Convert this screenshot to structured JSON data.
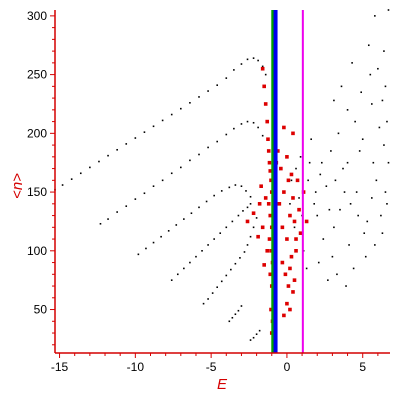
{
  "chart_data": {
    "type": "scatter",
    "title": "",
    "xlabel": "E",
    "ylabel": "<n>",
    "xlim": [
      -15.3,
      6.8
    ],
    "ylim": [
      13,
      305
    ],
    "x_ticks": [
      -15,
      -10,
      -5,
      0,
      5
    ],
    "y_ticks": [
      50,
      100,
      150,
      200,
      250,
      300
    ],
    "x_tick_labels": [
      "-15",
      "-10",
      "-5",
      "0",
      "5"
    ],
    "y_tick_labels": [
      "50",
      "100",
      "150",
      "200",
      "250",
      "300"
    ],
    "grid": false,
    "legend": "none",
    "colors": {
      "axis": "#d40000",
      "label": "#d40000",
      "ticklabel": "#000000",
      "series_black": "#000000",
      "series_red": "#dd0000",
      "line_green": "#00a000",
      "line_blue": "#0000ee",
      "line_magenta": "#ee00ee"
    },
    "vertical_lines": [
      {
        "x": -0.9,
        "color": "#00a000"
      },
      {
        "x": -0.75,
        "color": "#0000ee"
      },
      {
        "x": 1.05,
        "color": "#ee00ee"
      }
    ],
    "series": [
      {
        "color": "#000000",
        "kind": "dots",
        "points": [
          [
            -15.3,
            152
          ],
          [
            -14.8,
            156
          ],
          [
            -14.2,
            161
          ],
          [
            -13.6,
            166
          ],
          [
            -13,
            171
          ],
          [
            -12.4,
            176
          ],
          [
            -11.8,
            181
          ],
          [
            -11.2,
            186
          ],
          [
            -10.6,
            191
          ],
          [
            -10,
            196
          ],
          [
            -9.4,
            201
          ],
          [
            -8.8,
            206
          ],
          [
            -8.2,
            211
          ],
          [
            -7.6,
            216
          ],
          [
            -7,
            221
          ],
          [
            -6.4,
            226
          ],
          [
            -5.8,
            231
          ],
          [
            -5.2,
            236
          ],
          [
            -4.6,
            241
          ],
          [
            -4,
            247
          ],
          [
            -3.5,
            254
          ],
          [
            -3,
            259
          ],
          [
            -2.6,
            263
          ],
          [
            -2.2,
            264
          ],
          [
            -1.9,
            262
          ],
          [
            -1.6,
            257
          ],
          [
            -1.4,
            250
          ],
          [
            -12.3,
            123
          ],
          [
            -11.8,
            127
          ],
          [
            -11.2,
            133
          ],
          [
            -10.6,
            138
          ],
          [
            -10,
            144
          ],
          [
            -9.4,
            149
          ],
          [
            -8.8,
            155
          ],
          [
            -8.2,
            160
          ],
          [
            -7.6,
            166
          ],
          [
            -7,
            171
          ],
          [
            -6.4,
            177
          ],
          [
            -5.8,
            182
          ],
          [
            -5.2,
            188
          ],
          [
            -4.6,
            193
          ],
          [
            -4,
            199
          ],
          [
            -3.5,
            204
          ],
          [
            -3,
            208
          ],
          [
            -2.6,
            210
          ],
          [
            -2.2,
            209
          ],
          [
            -1.9,
            205
          ],
          [
            -1.6,
            198
          ],
          [
            -9.8,
            97
          ],
          [
            -9.3,
            102
          ],
          [
            -8.8,
            107
          ],
          [
            -8.3,
            112
          ],
          [
            -7.8,
            117
          ],
          [
            -7.3,
            122
          ],
          [
            -6.8,
            127
          ],
          [
            -6.3,
            132
          ],
          [
            -5.8,
            137
          ],
          [
            -5.3,
            142
          ],
          [
            -4.8,
            147
          ],
          [
            -4.3,
            151
          ],
          [
            -3.8,
            154
          ],
          [
            -3.4,
            156
          ],
          [
            -3,
            155
          ],
          [
            -2.7,
            151
          ],
          [
            -2.4,
            146
          ],
          [
            -7.6,
            75
          ],
          [
            -7.2,
            80
          ],
          [
            -6.8,
            85
          ],
          [
            -6.4,
            90
          ],
          [
            -6,
            95
          ],
          [
            -5.6,
            100
          ],
          [
            -5.2,
            105
          ],
          [
            -4.8,
            110
          ],
          [
            -4.4,
            115
          ],
          [
            -4,
            120
          ],
          [
            -3.6,
            125
          ],
          [
            -3.2,
            130
          ],
          [
            -2.9,
            134
          ],
          [
            -2.6,
            137
          ],
          [
            -2.4,
            140
          ],
          [
            -5.5,
            55
          ],
          [
            -5.2,
            59
          ],
          [
            -4.9,
            64
          ],
          [
            -4.6,
            69
          ],
          [
            -4.3,
            74
          ],
          [
            -4,
            79
          ],
          [
            -3.7,
            84
          ],
          [
            -3.4,
            89
          ],
          [
            -3.1,
            94
          ],
          [
            -2.8,
            99
          ],
          [
            -2.6,
            105
          ],
          [
            -2.4,
            112
          ],
          [
            -2.2,
            120
          ],
          [
            -2,
            128
          ],
          [
            -3.8,
            40
          ],
          [
            -3.6,
            43
          ],
          [
            -3.4,
            46
          ],
          [
            -3.2,
            49
          ],
          [
            -3,
            53
          ],
          [
            -2.4,
            24
          ],
          [
            -2.2,
            26
          ],
          [
            -2.0,
            29
          ],
          [
            -1.8,
            32
          ],
          [
            0.3,
            160
          ],
          [
            0.8,
            145
          ],
          [
            1.5,
            175
          ],
          [
            2.0,
            130
          ],
          [
            2.6,
            155
          ],
          [
            3.1,
            120
          ],
          [
            3.7,
            170
          ],
          [
            4.2,
            140
          ],
          [
            4.8,
            185
          ],
          [
            5.3,
            125
          ],
          [
            5.9,
            160
          ],
          [
            6.4,
            190
          ],
          [
            0.5,
            120
          ],
          [
            1.1,
            100
          ],
          [
            1.8,
            140
          ],
          [
            2.4,
            110
          ],
          [
            3.0,
            95
          ],
          [
            3.5,
            135
          ],
          [
            4.1,
            105
          ],
          [
            4.6,
            150
          ],
          [
            5.1,
            115
          ],
          [
            5.7,
            175
          ],
          [
            6.2,
            130
          ],
          [
            6.6,
            210
          ],
          [
            0.9,
            180
          ],
          [
            1.6,
            195
          ],
          [
            2.2,
            165
          ],
          [
            2.9,
            185
          ],
          [
            3.4,
            200
          ],
          [
            4.0,
            175
          ],
          [
            4.5,
            210
          ],
          [
            5.0,
            195
          ],
          [
            5.6,
            225
          ],
          [
            6.1,
            205
          ],
          [
            6.5,
            240
          ],
          [
            6.7,
            175
          ],
          [
            1.3,
            85
          ],
          [
            2.1,
            90
          ],
          [
            2.7,
            75
          ],
          [
            3.3,
            80
          ],
          [
            3.9,
            70
          ],
          [
            4.4,
            85
          ],
          [
            5.2,
            95
          ],
          [
            5.8,
            105
          ],
          [
            6.3,
            115
          ],
          [
            6.6,
            140
          ],
          [
            3.6,
            240
          ],
          [
            4.3,
            260
          ],
          [
            4.9,
            235
          ],
          [
            5.4,
            275
          ],
          [
            6.0,
            255
          ],
          [
            6.4,
            270
          ],
          [
            5.8,
            300
          ],
          [
            6.7,
            305
          ],
          [
            4.0,
            220
          ],
          [
            5.5,
            250
          ],
          [
            3.1,
            228
          ],
          [
            6.3,
            228
          ],
          [
            0.2,
            140
          ],
          [
            0.6,
            170
          ],
          [
            1.0,
            130
          ],
          [
            1.4,
            160
          ],
          [
            1.9,
            150
          ],
          [
            2.3,
            175
          ],
          [
            2.8,
            135
          ],
          [
            3.2,
            160
          ],
          [
            3.8,
            150
          ],
          [
            4.7,
            130
          ],
          [
            5.6,
            145
          ],
          [
            6.5,
            150
          ]
        ]
      },
      {
        "color": "#dd0000",
        "kind": "points",
        "points": [
          [
            -1.6,
            255
          ],
          [
            -1.5,
            240
          ],
          [
            -1.4,
            225
          ],
          [
            -1.3,
            210
          ],
          [
            -1.25,
            195
          ],
          [
            -1.2,
            185
          ],
          [
            -1.15,
            175
          ],
          [
            -1.1,
            168
          ],
          [
            -1.05,
            160
          ],
          [
            -1.0,
            150
          ],
          [
            -1.2,
            140
          ],
          [
            -1.1,
            130
          ],
          [
            -1.0,
            120
          ],
          [
            -1.15,
            110
          ],
          [
            -1.05,
            100
          ],
          [
            -0.95,
            90
          ],
          [
            -1.1,
            80
          ],
          [
            -1.0,
            70
          ],
          [
            -0.9,
            60
          ],
          [
            -1.05,
            50
          ],
          [
            -0.95,
            40
          ],
          [
            -1.0,
            30
          ],
          [
            -0.9,
            22
          ],
          [
            -0.5,
            140
          ],
          [
            -0.3,
            120
          ],
          [
            -0.2,
            150
          ],
          [
            0.0,
            110
          ],
          [
            0.1,
            160
          ],
          [
            0.2,
            130
          ],
          [
            0.3,
            95
          ],
          [
            0.4,
            145
          ],
          [
            0.5,
            125
          ],
          [
            0.6,
            100
          ],
          [
            0.8,
            135
          ],
          [
            0.9,
            115
          ],
          [
            1.1,
            150
          ],
          [
            1.3,
            125
          ],
          [
            -0.3,
            90
          ],
          [
            -0.1,
            80
          ],
          [
            0.1,
            70
          ],
          [
            0.2,
            85
          ],
          [
            0.4,
            65
          ],
          [
            0.5,
            75
          ],
          [
            0.0,
            55
          ],
          [
            -0.2,
            45
          ],
          [
            0.2,
            50
          ],
          [
            -0.4,
            170
          ],
          [
            0.0,
            180
          ],
          [
            0.3,
            165
          ],
          [
            -0.6,
            185
          ],
          [
            0.7,
            160
          ],
          [
            -1.4,
            145
          ],
          [
            -1.8,
            140
          ],
          [
            -2.2,
            132
          ],
          [
            -2.6,
            125
          ],
          [
            -1.6,
            120
          ],
          [
            -1.9,
            112
          ],
          [
            -1.3,
            100
          ],
          [
            -1.5,
            88
          ],
          [
            -1.7,
            155
          ],
          [
            -0.8,
            200
          ],
          [
            -0.7,
            175
          ],
          [
            -0.2,
            205
          ],
          [
            0.4,
            200
          ],
          [
            0.6,
            110
          ]
        ]
      }
    ]
  }
}
